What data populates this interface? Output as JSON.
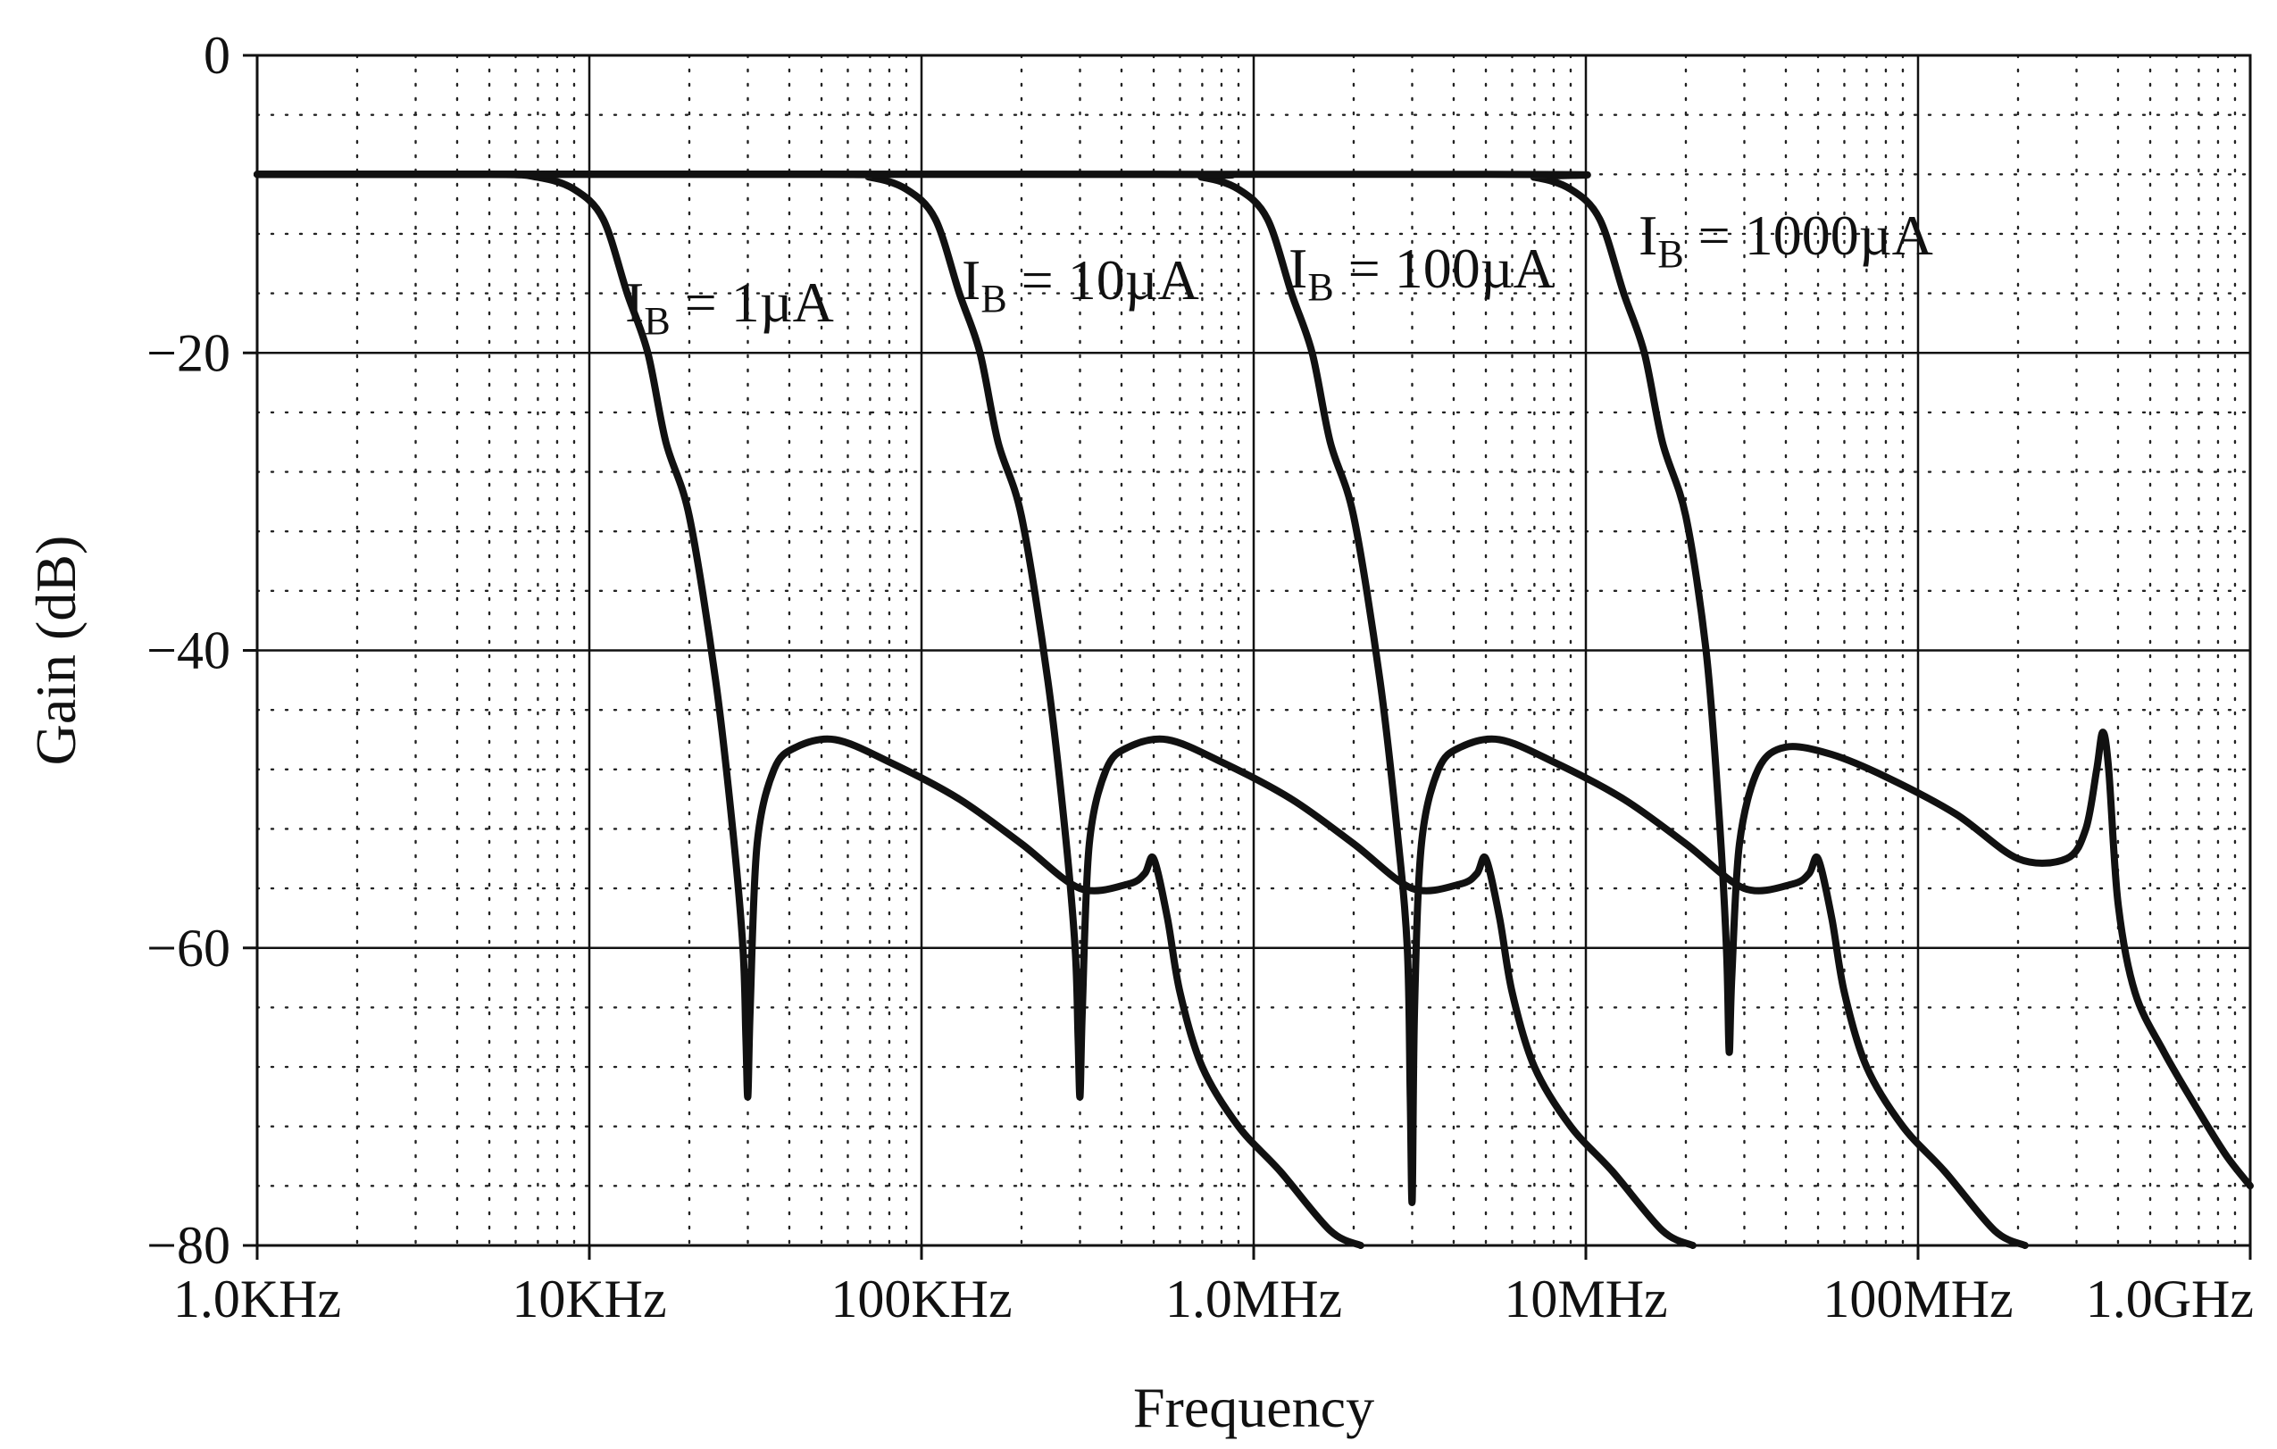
{
  "chart_data": {
    "type": "line",
    "title": "",
    "xlabel": "Frequency",
    "ylabel": "Gain (dB)",
    "x_scale": "log",
    "xlim_hz": [
      1000,
      1000000000
    ],
    "ylim": [
      -80,
      0
    ],
    "x_ticks": [
      {
        "value": 1000,
        "label": "1.0KHz"
      },
      {
        "value": 10000,
        "label": "10KHz"
      },
      {
        "value": 100000,
        "label": "100KHz"
      },
      {
        "value": 1000000,
        "label": "1.0MHz"
      },
      {
        "value": 10000000,
        "label": "10MHz"
      },
      {
        "value": 100000000,
        "label": "100MHz"
      },
      {
        "value": 1000000000,
        "label": "1.0GHz"
      }
    ],
    "y_ticks": [
      {
        "value": 0,
        "label": "0"
      },
      {
        "value": -20,
        "label": "−20"
      },
      {
        "value": -40,
        "label": "−40"
      },
      {
        "value": -60,
        "label": "−60"
      },
      {
        "value": -80,
        "label": "−80"
      }
    ],
    "grid": {
      "major": "solid",
      "minor": "dotted"
    },
    "series": [
      {
        "name": "IB = 1µA",
        "label": {
          "main": "I",
          "sub": "B",
          "rest": " = 1µA"
        },
        "x": [
          1000,
          5000,
          7000,
          9000,
          11000,
          13000,
          15000,
          17000,
          20000,
          24000,
          27000,
          29000,
          29600,
          30000,
          30500,
          32000,
          36000,
          42000,
          55000,
          80000,
          130000,
          200000,
          300000,
          420000,
          470000,
          500000,
          550000,
          600000,
          700000,
          900000,
          1200000,
          1700000,
          2100000
        ],
        "y": [
          -8,
          -8,
          -8.2,
          -9,
          -11,
          -16,
          -20,
          -26,
          -31,
          -42,
          -52,
          -60,
          -66,
          -70,
          -64,
          -53,
          -48,
          -46.5,
          -46,
          -47.5,
          -50,
          -53,
          -56,
          -55.7,
          -55,
          -54,
          -58,
          -63,
          -68,
          -72,
          -75,
          -79,
          -80
        ]
      },
      {
        "name": "IB = 10µA",
        "label": {
          "main": "I",
          "sub": "B",
          "rest": " = 10µA"
        },
        "x": [
          1000,
          50000,
          70000,
          90000,
          110000,
          130000,
          150000,
          170000,
          200000,
          240000,
          270000,
          290000,
          296000,
          300000,
          305000,
          320000,
          360000,
          420000,
          550000,
          800000,
          1300000,
          2000000,
          3000000,
          4200000,
          4700000,
          5000000,
          5500000,
          6000000,
          7000000,
          9000000,
          12000000,
          17000000,
          21000000
        ],
        "y": [
          -8,
          -8,
          -8.2,
          -9,
          -11,
          -16,
          -20,
          -26,
          -31,
          -42,
          -52,
          -60,
          -66,
          -70,
          -64,
          -53,
          -48,
          -46.5,
          -46,
          -47.5,
          -50,
          -53,
          -56,
          -55.7,
          -55,
          -54,
          -58,
          -63,
          -68,
          -72,
          -75,
          -79,
          -80
        ]
      },
      {
        "name": "IB = 100µA",
        "label": {
          "main": "I",
          "sub": "B",
          "rest": " = 100µA"
        },
        "x": [
          1000,
          500000,
          700000,
          900000,
          1100000,
          1300000,
          1500000,
          1700000,
          2000000,
          2400000,
          2700000,
          2900000,
          2960000,
          3000000,
          3050000,
          3200000,
          3600000,
          4200000,
          5500000,
          8000000,
          13000000,
          20000000,
          30000000,
          42000000,
          47000000,
          50000000,
          55000000,
          60000000,
          70000000,
          90000000,
          120000000,
          170000000,
          210000000
        ],
        "y": [
          -8,
          -8,
          -8.2,
          -9,
          -11,
          -16,
          -20,
          -26,
          -31,
          -42,
          -52,
          -60,
          -70,
          -77,
          -64,
          -53,
          -48,
          -46.5,
          -46,
          -47.5,
          -50,
          -53,
          -56,
          -55.7,
          -55,
          -54,
          -58,
          -63,
          -68,
          -72,
          -75,
          -79,
          -80
        ]
      },
      {
        "name": "IB = 1000µA",
        "label": {
          "main": "I",
          "sub": "B",
          "rest": " = 1000µA"
        },
        "x": [
          1000,
          5000000,
          7000000,
          9000000,
          11000000,
          13000000,
          15000000,
          17000000,
          20000000,
          23000000,
          25000000,
          26500000,
          27000000,
          27500000,
          29000000,
          33000000,
          40000000,
          55000000,
          80000000,
          130000000,
          200000000,
          280000000,
          320000000,
          345000000,
          360000000,
          375000000,
          400000000,
          450000000,
          550000000,
          700000000,
          850000000,
          1000000000
        ],
        "y": [
          -8,
          -8,
          -8.2,
          -9,
          -11,
          -16,
          -20,
          -26,
          -31,
          -40,
          -50,
          -60,
          -67,
          -62,
          -53,
          -48,
          -46.5,
          -47,
          -48.5,
          -51,
          -54,
          -54,
          -52,
          -48,
          -45.5,
          -48,
          -57,
          -63,
          -67,
          -71,
          -74,
          -76
        ]
      }
    ]
  }
}
